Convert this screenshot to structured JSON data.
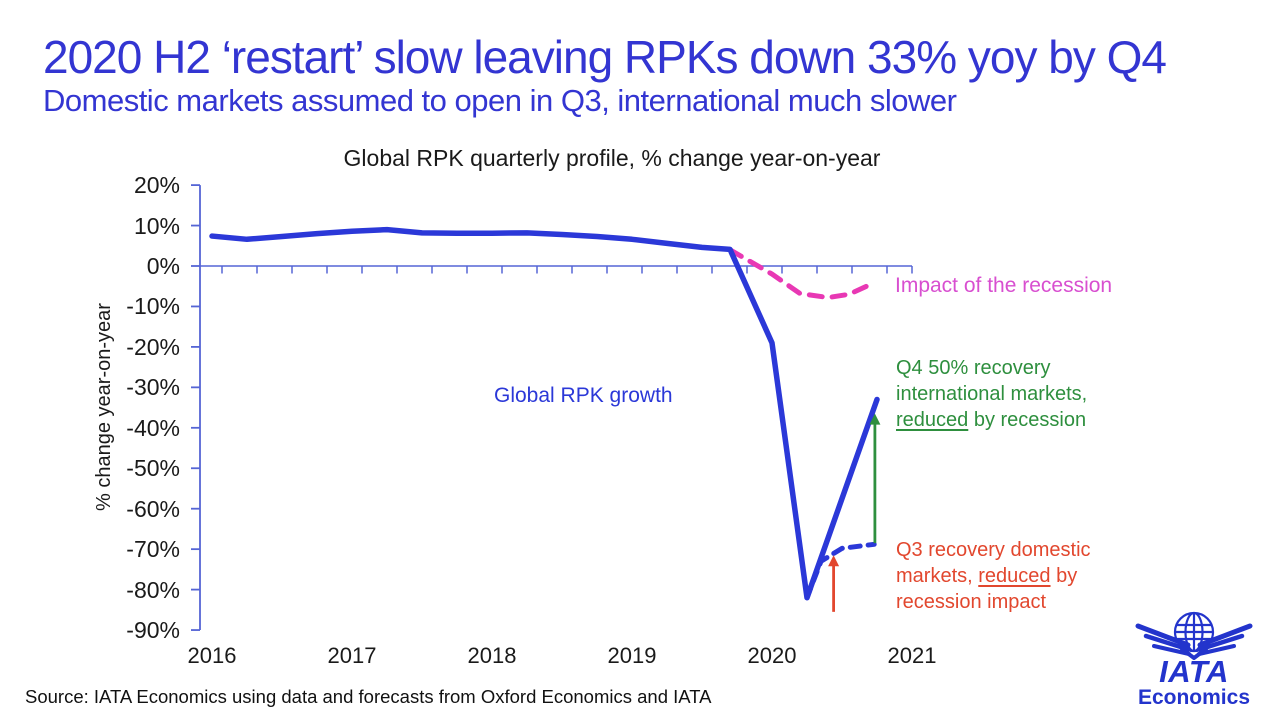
{
  "slide": {
    "title": "2020 H2 ‘restart’ slow leaving RPKs down 33% yoy by Q4",
    "subtitle": "Domestic markets assumed to open in Q3, international much slower",
    "source": "Source: IATA Economics using data and forecasts from Oxford Economics and IATA",
    "heading_color": "#3335d2"
  },
  "logo": {
    "brand": "IATA",
    "sub": "Economics",
    "color": "#2334cc"
  },
  "chart_data": {
    "type": "line",
    "title": "Global RPK quarterly profile, % change year-on-year",
    "ylabel": "% change year-on-year",
    "ylim": [
      -90,
      20
    ],
    "ytick_step": 10,
    "ytick_suffix": "%",
    "x_years": [
      "2016",
      "2017",
      "2018",
      "2019",
      "2020",
      "2021"
    ],
    "grid": false,
    "legend_position": "inline-labels",
    "axis_color": "#5565d5",
    "series": [
      {
        "name": "Global RPK growth",
        "color": "#2b38d8",
        "style": "solid",
        "x": [
          2016.0,
          2016.25,
          2016.5,
          2016.75,
          2017.0,
          2017.25,
          2017.5,
          2017.75,
          2018.0,
          2018.25,
          2018.5,
          2018.75,
          2019.0,
          2019.25,
          2019.5,
          2019.7,
          2020.0,
          2020.25,
          2020.75
        ],
        "y": [
          7.4,
          6.6,
          7.3,
          8.0,
          8.6,
          9.0,
          8.2,
          8.1,
          8.1,
          8.2,
          7.8,
          7.3,
          6.6,
          5.6,
          4.6,
          4.1,
          -19,
          -82,
          -33
        ]
      },
      {
        "name": "Impact of the recession",
        "color": "#e838b4",
        "label_color": "#d84fd0",
        "style": "dashed",
        "x": [
          2019.7,
          2020.0,
          2020.2,
          2020.4,
          2020.55,
          2020.72
        ],
        "y": [
          4.0,
          -2.0,
          -6.8,
          -7.8,
          -7.0,
          -4.3
        ]
      },
      {
        "name": "Global RPK reduced by recession",
        "color": "#2b38d8",
        "style": "dashed",
        "x": [
          2020.25,
          2020.35,
          2020.5,
          2020.73
        ],
        "y": [
          -82,
          -73,
          -69.8,
          -68.8
        ]
      }
    ],
    "arrows": [
      {
        "name": "q4-recovery-arrow",
        "color": "#2e8f3e",
        "x": 2020.735,
        "y_from": -68.5,
        "y_to": -36.5
      },
      {
        "name": "q3-recovery-arrow",
        "color": "#e2472e",
        "x": 2020.44,
        "y_from": -85.5,
        "y_to": -71.5
      }
    ],
    "notes": {
      "q4": {
        "pre": "Q4 50% recovery international markets, ",
        "underlined": "reduced",
        "post": " by recession",
        "color": "#2e8f3e"
      },
      "q3": {
        "pre": "Q3 recovery domestic markets, ",
        "underlined": "reduced",
        "post": " by recession impact",
        "color": "#e2472e"
      }
    }
  }
}
